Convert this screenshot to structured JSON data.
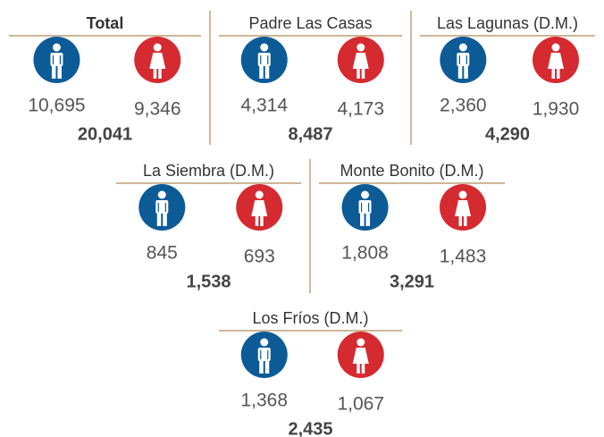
{
  "panels": [
    {
      "name": "Total",
      "male": "10,695",
      "female": "9,346",
      "total": "20,041"
    },
    {
      "name": "Padre Las Casas",
      "male": "4,314",
      "female": "4,173",
      "total": "8,487"
    },
    {
      "name": "Las Lagunas (D.M.)",
      "male": "2,360",
      "female": "1,930",
      "total": "4,290"
    },
    {
      "name": "La Siembra  (D.M.)",
      "male": "845",
      "female": "693",
      "total": "1,538"
    },
    {
      "name": "Monte Bonito (D.M.)",
      "male": "1,808",
      "female": "1,483",
      "total": "3,291"
    },
    {
      "name": "Los Fríos (D.M.)",
      "male": "1,368",
      "female": "1,067",
      "total": "2,435"
    }
  ]
}
